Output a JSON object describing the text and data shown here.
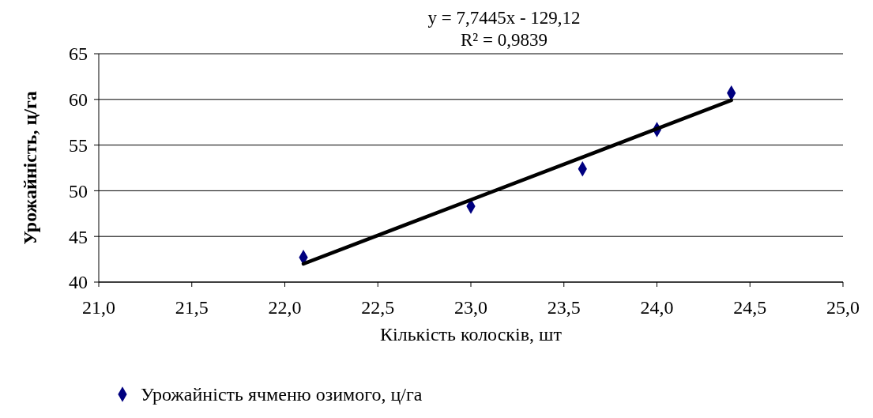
{
  "chart_data": {
    "type": "scatter",
    "xlabel": "Кількість колосків, шт",
    "ylabel": "Урожайність, ц/га",
    "annotations": [
      "y = 7,7445x - 129,12",
      "R² = 0,9839"
    ],
    "xlim": [
      21,
      25
    ],
    "ylim": [
      40,
      65
    ],
    "xticks": [
      {
        "value": 21,
        "label": "21,0"
      },
      {
        "value": 21.5,
        "label": "21,5"
      },
      {
        "value": 22,
        "label": "22,0"
      },
      {
        "value": 22.5,
        "label": "22,5"
      },
      {
        "value": 23,
        "label": "23,0"
      },
      {
        "value": 23.5,
        "label": "23,5"
      },
      {
        "value": 24,
        "label": "24,0"
      },
      {
        "value": 24.5,
        "label": "24,5"
      },
      {
        "value": 25,
        "label": "25,0"
      }
    ],
    "yticks": [
      40,
      45,
      50,
      55,
      60,
      65
    ],
    "grid": "y",
    "legend": "bottom",
    "marker": "diamond",
    "series": [
      {
        "name": "Урожайність ячменю озимого, ц/га",
        "color": "#000080",
        "x": [
          22.1,
          23.0,
          23.6,
          24.0,
          24.4
        ],
        "values": [
          42.7,
          48.3,
          52.4,
          56.7,
          60.7
        ]
      },
      {
        "type": "line",
        "color": "#000000",
        "x": [
          22.1,
          24.4
        ],
        "values": [
          42.0,
          59.9
        ],
        "marker": "none",
        "line_style": "solid"
      }
    ]
  }
}
